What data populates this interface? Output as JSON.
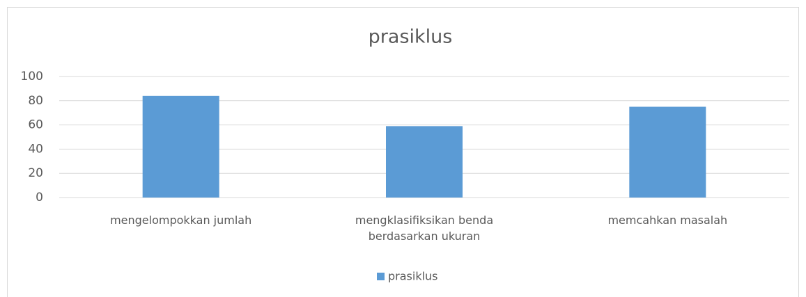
{
  "chart_data": {
    "type": "bar",
    "title": "prasiklus",
    "categories": [
      "mengelompokkan jumlah",
      "mengklasifiksikan benda berdasarkan ukuran",
      "memcahkan masalah"
    ],
    "series": [
      {
        "name": "prasiklus",
        "color": "#5b9bd5",
        "values": [
          84,
          59,
          75
        ]
      }
    ],
    "ylim": [
      0,
      100
    ],
    "yticks": [
      0,
      20,
      40,
      60,
      80,
      100
    ],
    "grid": true,
    "legend": "bottom"
  }
}
